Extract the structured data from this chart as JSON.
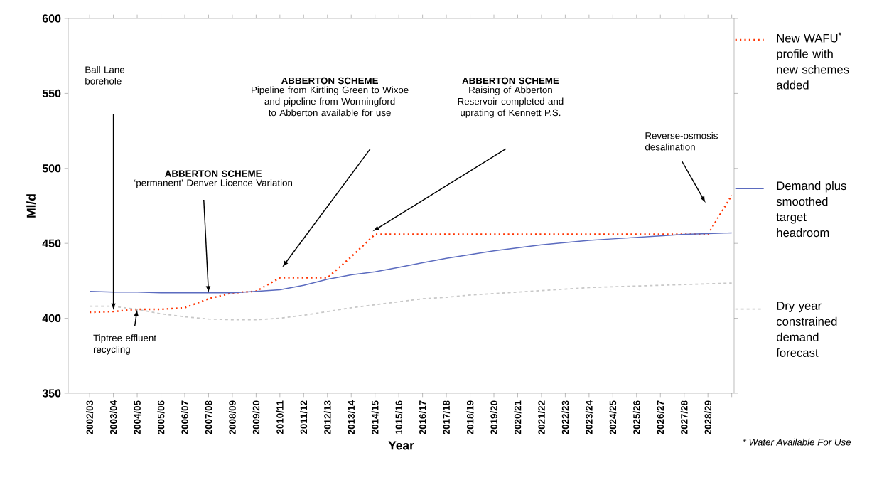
{
  "chart_data": {
    "type": "line",
    "xlabel": "Year",
    "ylabel": "Ml/d",
    "categories": [
      "2002/03",
      "2003/04",
      "2004/05",
      "2005/06",
      "2006/07",
      "2007/08",
      "2008/09",
      "2009/20",
      "2010/11",
      "2011/12",
      "2012/13",
      "2013/14",
      "2014/15",
      "1015/16",
      "2016/17",
      "2017/18",
      "2018/19",
      "2019/20",
      "2020/21",
      "2021/22",
      "2022/23",
      "2023/24",
      "2024/25",
      "2025/26",
      "2026/27",
      "2027/28",
      "2028/29",
      null
    ],
    "series": [
      {
        "name": "New WAFU$^{*}$ profile with new schemes added",
        "color": "#ff3300",
        "line_style": "dotted",
        "values": [
          404,
          404.5,
          406,
          406,
          407,
          413,
          417,
          418,
          427,
          427,
          427,
          441,
          456,
          456,
          456,
          456,
          456,
          456,
          456,
          456,
          456,
          456,
          456,
          456,
          456,
          456,
          456,
          482
        ]
      },
      {
        "name": "Demand plus smoothed target headroom",
        "color": "#5b6bbf",
        "line_style": "solid",
        "values": [
          418,
          417.5,
          417.5,
          417,
          417,
          417,
          417,
          418,
          419,
          422,
          426,
          429,
          431,
          434,
          437,
          440,
          442.5,
          445,
          447,
          449,
          450.5,
          452,
          453,
          454,
          455,
          456,
          456.5,
          457
        ]
      },
      {
        "name": "Dry year constrained demand forecast",
        "color": "#c8c8c8",
        "line_style": "dashed",
        "values": [
          408,
          408,
          406,
          403,
          401,
          399.5,
          399,
          399,
          400,
          402,
          404.5,
          407,
          409,
          411,
          413,
          414,
          415.5,
          416.5,
          417.5,
          418.5,
          419.5,
          420.5,
          421,
          421.5,
          422,
          422.5,
          423,
          423.5
        ]
      }
    ],
    "ylim": [
      350,
      600
    ],
    "yticks": [
      350,
      400,
      450,
      500,
      550,
      600
    ],
    "grid": false,
    "legend": "right",
    "annotations": [
      "Ball Lane borehole",
      {
        "text": "Tiptree effluent recycling",
        "x": "2004/05",
        "y": 406
      },
      "ABBERTON SCHEME",
      {
        "text": "‘permanent’ Denver Licence Variation",
        "x": "2007/08",
        "y": 417
      },
      "ABBERTON SCHEME",
      "Pipeline from Kirtling Green to Wixoe and pipeline from Wormingford to Abberton available for use",
      "ABBERTON SCHEME",
      "Raising of Abberton Reservoir completed and uprating of Kennett P.S.",
      "Reverse-osmosis desalination",
      "* Water Available For Use"
    ]
  }
}
